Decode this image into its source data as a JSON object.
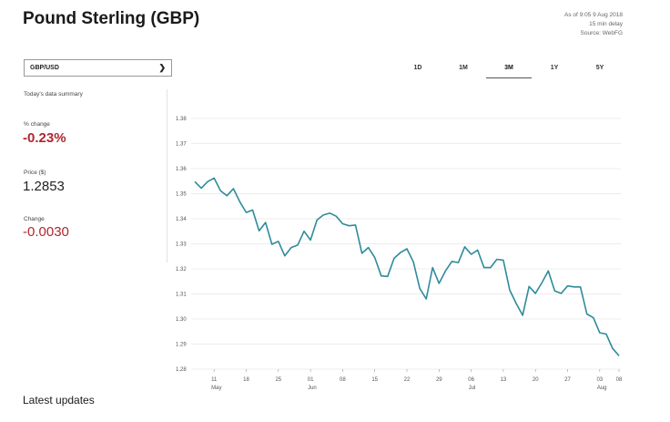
{
  "header": {
    "title": "Pound Sterling (GBP)",
    "as_of": "As of 9:05 9 Aug 2018",
    "delay": "15 min delay",
    "source": "Source: WebFG"
  },
  "pair_select": {
    "value": "GBP/USD"
  },
  "tabs": [
    {
      "label": "1D",
      "active": false
    },
    {
      "label": "1M",
      "active": false
    },
    {
      "label": "3M",
      "active": true
    },
    {
      "label": "1Y",
      "active": false
    },
    {
      "label": "5Y",
      "active": false
    }
  ],
  "summary": {
    "heading": "Today's data summary",
    "pct_change_label": "% change",
    "pct_change_value": "-0.23%",
    "price_label": "Price ($)",
    "price_value": "1.2853",
    "change_label": "Change",
    "change_value": "-0.0030"
  },
  "latest_updates": "Latest updates",
  "colors": {
    "line": "#2e8b9a",
    "negative": "#b0262e",
    "grid": "#e6e6e6"
  },
  "chart_data": {
    "type": "line",
    "ylim": [
      1.28,
      1.38
    ],
    "y_ticks": [
      "1.38",
      "1.37",
      "1.36",
      "1.35",
      "1.34",
      "1.33",
      "1.32",
      "1.31",
      "1.30",
      "1.29",
      "1.28"
    ],
    "x_ticks": [
      {
        "day": "11",
        "month": "May",
        "i": 3
      },
      {
        "day": "18",
        "month": "",
        "i": 8
      },
      {
        "day": "25",
        "month": "",
        "i": 13
      },
      {
        "day": "01",
        "month": "Jun",
        "i": 18
      },
      {
        "day": "08",
        "month": "",
        "i": 23
      },
      {
        "day": "15",
        "month": "",
        "i": 28
      },
      {
        "day": "22",
        "month": "",
        "i": 33
      },
      {
        "day": "29",
        "month": "",
        "i": 38
      },
      {
        "day": "06",
        "month": "Jul",
        "i": 43
      },
      {
        "day": "13",
        "month": "",
        "i": 48
      },
      {
        "day": "20",
        "month": "",
        "i": 53
      },
      {
        "day": "27",
        "month": "",
        "i": 58
      },
      {
        "day": "03",
        "month": "Aug",
        "i": 63
      },
      {
        "day": "08",
        "month": "",
        "i": 66
      }
    ],
    "series": [
      {
        "values": [
          1.3548,
          1.3522,
          1.3548,
          1.3562,
          1.3512,
          1.3492,
          1.352,
          1.3468,
          1.3425,
          1.3435,
          1.3352,
          1.3385,
          1.3298,
          1.331,
          1.3252,
          1.3285,
          1.3295,
          1.335,
          1.3315,
          1.3395,
          1.3415,
          1.3422,
          1.341,
          1.338,
          1.3372,
          1.3375,
          1.3262,
          1.3285,
          1.3245,
          1.3172,
          1.317,
          1.3242,
          1.3265,
          1.328,
          1.3228,
          1.3122,
          1.308,
          1.3205,
          1.3142,
          1.3192,
          1.323,
          1.3225,
          1.3288,
          1.3258,
          1.3275,
          1.3205,
          1.3205,
          1.3238,
          1.3235,
          1.3115,
          1.3062,
          1.3015,
          1.313,
          1.3102,
          1.3145,
          1.3192,
          1.3112,
          1.3102,
          1.3132,
          1.3128,
          1.3128,
          1.302,
          1.3005,
          1.2945,
          1.294,
          1.2883,
          1.2853
        ]
      }
    ]
  }
}
